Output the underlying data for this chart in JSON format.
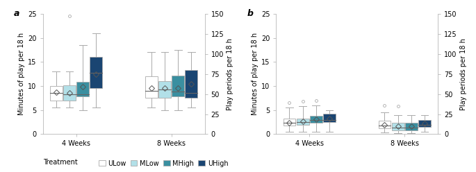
{
  "panel_a": {
    "title": "a",
    "ylabel_left": "Minutes of play per 18 h",
    "ylabel_right": "Play periods per 18 h",
    "ylim_left": [
      0,
      25
    ],
    "ylim_right": [
      0,
      150
    ],
    "yticks_left": [
      0,
      5,
      10,
      15,
      20,
      25
    ],
    "yticks_right": [
      0,
      25,
      50,
      75,
      100,
      125,
      150
    ],
    "groups": [
      "4 Weeks",
      "8 Weeks"
    ],
    "treatments": [
      "ULow",
      "MLow",
      "MHigh",
      "UHigh"
    ],
    "colors": [
      "#ffffff",
      "#b2e0e8",
      "#3a8fa0",
      "#1a4572"
    ],
    "edgecolors": [
      "#aaaaaa",
      "#aaaaaa",
      "#aaaaaa",
      "#aaaaaa"
    ],
    "boxes": {
      "4 Weeks": {
        "ULow": {
          "q1": 7.0,
          "median": 8.5,
          "q3": 10.0,
          "whislo": 5.5,
          "whishi": 13.0,
          "mean": 8.7,
          "fliers": []
        },
        "MLow": {
          "q1": 7.0,
          "median": 8.3,
          "q3": 10.2,
          "whislo": 5.5,
          "whishi": 13.0,
          "mean": 8.6,
          "fliers": [
            24.5
          ]
        },
        "MHigh": {
          "q1": 7.8,
          "median": 8.2,
          "q3": 10.8,
          "whislo": 5.0,
          "whishi": 18.5,
          "mean": 9.8,
          "fliers": []
        },
        "UHigh": {
          "q1": 9.5,
          "median": 12.8,
          "q3": 16.0,
          "whislo": 5.5,
          "whishi": 21.0,
          "mean": 12.5,
          "fliers": []
        }
      },
      "8 Weeks": {
        "ULow": {
          "q1": 7.5,
          "median": 9.0,
          "q3": 12.0,
          "whislo": 5.5,
          "whishi": 17.0,
          "mean": 9.5,
          "fliers": []
        },
        "MLow": {
          "q1": 7.5,
          "median": 9.3,
          "q3": 11.0,
          "whislo": 5.0,
          "whishi": 17.0,
          "mean": 9.5,
          "fliers": []
        },
        "MHigh": {
          "q1": 7.8,
          "median": 8.8,
          "q3": 12.2,
          "whislo": 5.0,
          "whishi": 17.5,
          "mean": 9.5,
          "fliers": []
        },
        "UHigh": {
          "q1": 7.5,
          "median": 8.5,
          "q3": 13.3,
          "whislo": 5.5,
          "whishi": 17.0,
          "mean": 10.5,
          "fliers": []
        }
      }
    }
  },
  "panel_b": {
    "title": "b",
    "ylabel_left": "Minutes of play per 18 h",
    "ylabel_right": "Play periods per 18 h",
    "ylim_left": [
      0,
      25
    ],
    "ylim_right": [
      0,
      150
    ],
    "yticks_left": [
      0,
      5,
      10,
      15,
      20,
      25
    ],
    "yticks_right": [
      0,
      25,
      50,
      75,
      100,
      125,
      150
    ],
    "groups": [
      "4 Weeks",
      "8 Weeks"
    ],
    "treatments": [
      "ULow",
      "MLow",
      "MHigh",
      "UHigh"
    ],
    "colors": [
      "#ffffff",
      "#b2e0e8",
      "#3a8fa0",
      "#1a4572"
    ],
    "edgecolors": [
      "#aaaaaa",
      "#aaaaaa",
      "#aaaaaa",
      "#aaaaaa"
    ],
    "boxes": {
      "4 Weeks": {
        "ULow": {
          "q1": 1.8,
          "median": 2.3,
          "q3": 3.2,
          "whislo": 0.5,
          "whishi": 5.5,
          "mean": 2.4,
          "fliers": [
            6.5
          ]
        },
        "MLow": {
          "q1": 2.0,
          "median": 2.5,
          "q3": 3.3,
          "whislo": 0.5,
          "whishi": 5.8,
          "mean": 2.6,
          "fliers": [
            6.8
          ]
        },
        "MHigh": {
          "q1": 2.3,
          "median": 2.9,
          "q3": 3.8,
          "whislo": 0.5,
          "whishi": 6.0,
          "mean": 3.1,
          "fliers": [
            7.0
          ]
        },
        "UHigh": {
          "q1": 2.5,
          "median": 3.0,
          "q3": 4.2,
          "whislo": 0.5,
          "whishi": 5.0,
          "mean": 3.3,
          "fliers": []
        }
      },
      "8 Weeks": {
        "ULow": {
          "q1": 1.2,
          "median": 1.8,
          "q3": 2.8,
          "whislo": 0.3,
          "whishi": 4.5,
          "mean": 2.0,
          "fliers": [
            6.0
          ]
        },
        "MLow": {
          "q1": 0.8,
          "median": 1.3,
          "q3": 2.3,
          "whislo": 0.2,
          "whishi": 4.0,
          "mean": 1.6,
          "fliers": [
            5.8
          ]
        },
        "MHigh": {
          "q1": 0.8,
          "median": 1.3,
          "q3": 2.3,
          "whislo": 0.2,
          "whishi": 4.0,
          "mean": 1.6,
          "fliers": []
        },
        "UHigh": {
          "q1": 1.5,
          "median": 2.0,
          "q3": 3.0,
          "whislo": 0.5,
          "whishi": 4.0,
          "mean": 2.2,
          "fliers": []
        }
      }
    }
  },
  "legend": {
    "labels": [
      "ULow",
      "MLow",
      "MHigh",
      "UHigh"
    ],
    "colors": [
      "#ffffff",
      "#b2e0e8",
      "#3a8fa0",
      "#1a4572"
    ],
    "edgecolors": [
      "#aaaaaa",
      "#aaaaaa",
      "#aaaaaa",
      "#aaaaaa"
    ]
  },
  "background_color": "#ffffff",
  "box_width": 0.13,
  "group_positions": [
    1.0,
    2.0
  ],
  "offsets": [
    -0.21,
    -0.07,
    0.07,
    0.21
  ]
}
